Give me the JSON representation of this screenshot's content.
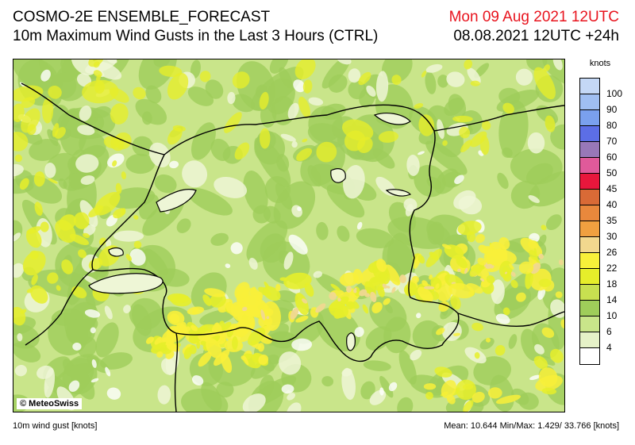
{
  "header": {
    "title": "COSMO-2E ENSEMBLE_FORECAST",
    "subtitle": "10m Maximum Wind Gusts in the Last 3 Hours (CTRL)",
    "valid_time": "Mon 09 Aug 2021 12UTC",
    "run_time": "08.08.2021 12UTC +24h"
  },
  "map": {
    "credit": "© MeteoSwiss",
    "colors": {
      "calm": "#ffffff",
      "light": "#eef6d6",
      "low": "#c9e58a",
      "mid": "#9fcd5a",
      "moderate": "#e6ee2a",
      "strong": "#f8f03a",
      "gust": "#f0d890",
      "border": "#000000",
      "lake_outline": "#000000"
    }
  },
  "legend": {
    "unit": "knots",
    "levels": [
      {
        "label": "100",
        "color": "#c4d8f6"
      },
      {
        "label": "90",
        "color": "#a0bff2"
      },
      {
        "label": "80",
        "color": "#7aa0ee"
      },
      {
        "label": "70",
        "color": "#5c6ee6"
      },
      {
        "label": "60",
        "color": "#9878b8"
      },
      {
        "label": "50",
        "color": "#e05a9a"
      },
      {
        "label": "45",
        "color": "#e8173c"
      },
      {
        "label": "40",
        "color": "#d96a36"
      },
      {
        "label": "35",
        "color": "#e9883c"
      },
      {
        "label": "30",
        "color": "#f0a040"
      },
      {
        "label": "26",
        "color": "#f2d88e"
      },
      {
        "label": "22",
        "color": "#f8f03a"
      },
      {
        "label": "18",
        "color": "#e6ee2a"
      },
      {
        "label": "14",
        "color": "#c8e050"
      },
      {
        "label": "10",
        "color": "#9fcd5a"
      },
      {
        "label": "6",
        "color": "#c9e58a"
      },
      {
        "label": "4",
        "color": "#e6f2c8"
      },
      {
        "label": "",
        "color": "#ffffff"
      }
    ]
  },
  "footer": {
    "variable": "10m wind gust [knots]",
    "stats": "Mean: 10.644 Min/Max:  1.429/ 33.766 [knots]"
  }
}
